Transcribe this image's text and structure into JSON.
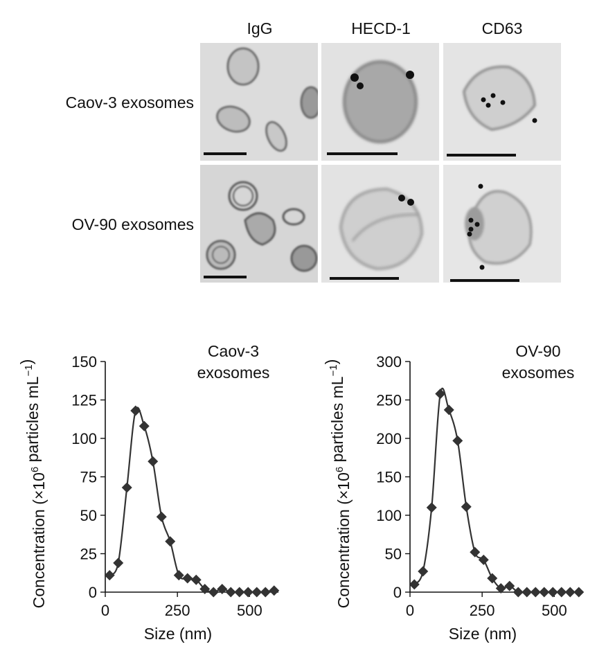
{
  "micrographs": {
    "columns": [
      "IgG",
      "HECD-1",
      "CD63"
    ],
    "rows": [
      "Caov-3 exosomes",
      "OV-90 exosomes"
    ]
  },
  "chart_data": [
    {
      "type": "line",
      "title": "",
      "annotation": [
        "Caov-3",
        "exosomes"
      ],
      "xlabel": "Size (nm)",
      "ylabel": "Concentration (×10",
      "ylabel_sup": "6",
      "ylabel_tail": " particles mL",
      "ylabel_sup2": "−1",
      "ylabel_end": ")",
      "xlim": [
        0,
        600
      ],
      "ylim": [
        0,
        150
      ],
      "xticks": [
        0,
        250,
        500
      ],
      "yticks": [
        0,
        25,
        50,
        75,
        100,
        125,
        150
      ],
      "marker": "diamond",
      "color": "#333333",
      "x": [
        15,
        45,
        75,
        105,
        135,
        165,
        195,
        225,
        255,
        285,
        315,
        345,
        375,
        405,
        435,
        465,
        495,
        525,
        555,
        585
      ],
      "y": [
        11,
        19,
        68,
        118,
        108,
        85,
        49,
        33,
        11,
        9,
        8,
        2,
        0,
        2,
        0,
        0,
        0,
        0,
        0,
        1
      ]
    },
    {
      "type": "line",
      "title": "",
      "annotation": [
        "OV-90",
        "exosomes"
      ],
      "xlabel": "Size (nm)",
      "ylabel": "Concentration (×10",
      "ylabel_sup": "6",
      "ylabel_tail": " particles mL",
      "ylabel_sup2": "−1",
      "ylabel_end": ")",
      "xlim": [
        0,
        600
      ],
      "ylim": [
        0,
        300
      ],
      "xticks": [
        0,
        250,
        500
      ],
      "yticks": [
        0,
        50,
        100,
        150,
        200,
        250,
        300
      ],
      "marker": "diamond",
      "color": "#333333",
      "x": [
        15,
        45,
        75,
        105,
        135,
        165,
        195,
        225,
        255,
        285,
        315,
        345,
        375,
        405,
        435,
        465,
        495,
        525,
        555,
        585
      ],
      "y": [
        10,
        27,
        110,
        258,
        237,
        197,
        111,
        52,
        42,
        18,
        5,
        8,
        0,
        0,
        0,
        0,
        0,
        0,
        0,
        0
      ]
    }
  ]
}
